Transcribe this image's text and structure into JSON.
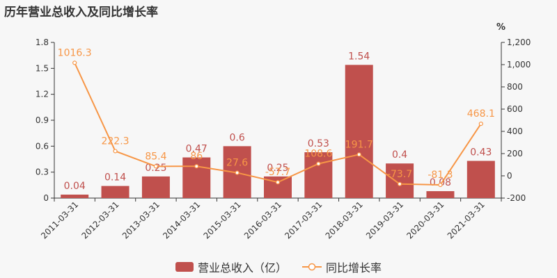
{
  "title": "历年营业总收入及同比增长率",
  "colors": {
    "bar": "#c0504d",
    "line": "#f79646",
    "axis": "#333333"
  },
  "chart_data": {
    "type": "bar",
    "categories": [
      "2011-03-31",
      "2012-03-31",
      "2013-03-31",
      "2014-03-31",
      "2015-03-31",
      "2016-03-31",
      "2017-03-31",
      "2018-03-31",
      "2019-03-31",
      "2020-03-31",
      "2021-03-31"
    ],
    "series": [
      {
        "name": "营业总收入（亿）",
        "type": "bar",
        "axis": "left",
        "values": [
          0.04,
          0.14,
          0.25,
          0.47,
          0.6,
          0.25,
          0.53,
          1.54,
          0.4,
          0.08,
          0.43
        ],
        "labels": [
          "0.04",
          "0.14",
          "0.25",
          "0.47",
          "0.6",
          "0.25",
          "0.53",
          "1.54",
          "0.4",
          "0.08",
          "0.43"
        ]
      },
      {
        "name": "同比增长率",
        "type": "line",
        "axis": "right",
        "values": [
          1016.3,
          222.3,
          85.4,
          86,
          27.6,
          -57.7,
          108.6,
          191.7,
          -73.7,
          -81.3,
          468.1
        ],
        "labels": [
          "1016.3",
          "222.3",
          "85.4",
          "86",
          "27.6",
          "-57.7",
          "108.6",
          "191.7",
          "-73.7",
          "-81.3",
          "468.1"
        ]
      }
    ],
    "y_left": {
      "min": 0,
      "max": 1.8,
      "ticks": [
        "0",
        "0.3",
        "0.6",
        "0.9",
        "1.2",
        "1.5",
        "1.8"
      ]
    },
    "y_right": {
      "min": -200,
      "max": 1200,
      "unit": "%",
      "ticks": [
        "-200",
        "0",
        "200",
        "400",
        "600",
        "800",
        "1,000",
        "1,200"
      ]
    },
    "grid": false,
    "legend": "bottom-center"
  }
}
